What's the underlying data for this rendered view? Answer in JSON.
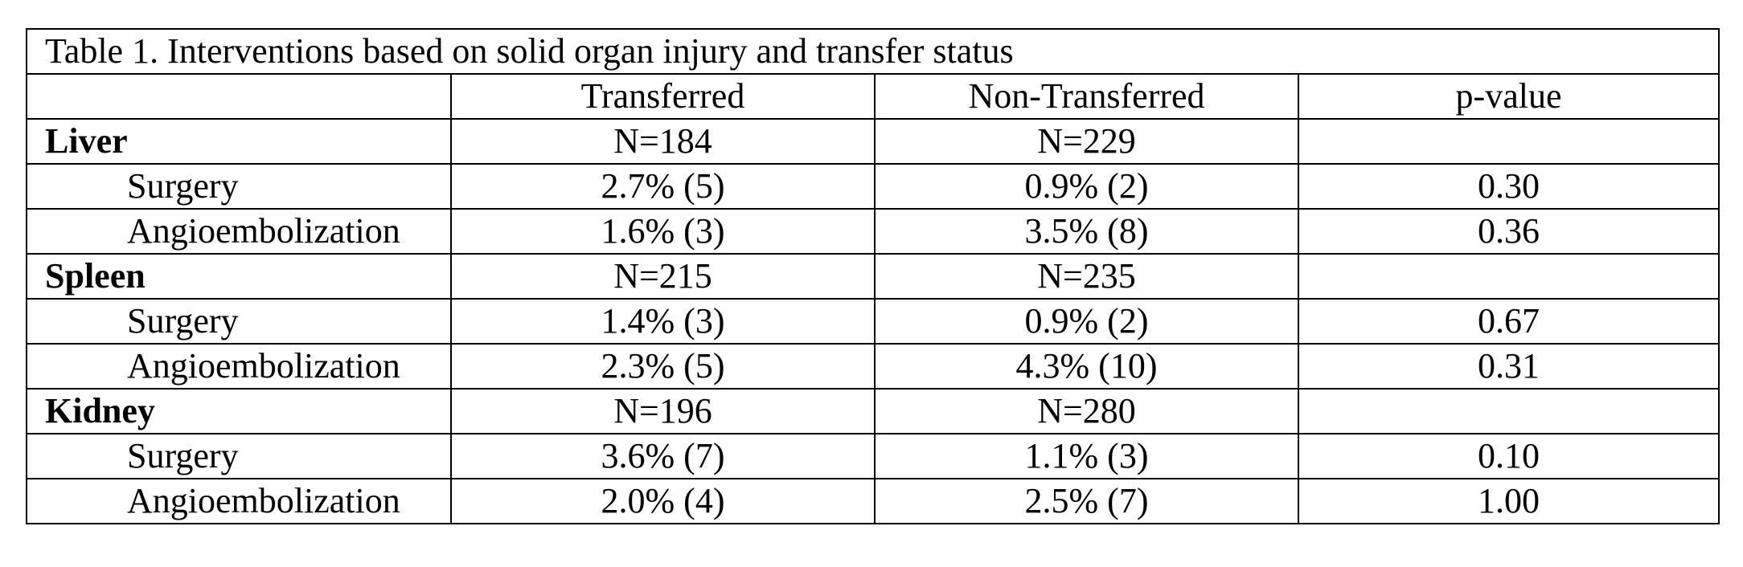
{
  "table": {
    "caption": "Table 1. Interventions based on solid organ injury and transfer status",
    "header": {
      "blank": "",
      "transferred": "Transferred",
      "non_transferred": "Non-Transferred",
      "p_value": "p-value"
    },
    "groups": [
      {
        "organ": "Liver",
        "n_transferred": "N=184",
        "n_non_transferred": "N=229",
        "rows": [
          {
            "label": "Surgery",
            "transferred": "2.7% (5)",
            "non_transferred": "0.9% (2)",
            "p_value": "0.30"
          },
          {
            "label": "Angioembolization",
            "transferred": "1.6% (3)",
            "non_transferred": "3.5% (8)",
            "p_value": "0.36"
          }
        ]
      },
      {
        "organ": "Spleen",
        "n_transferred": "N=215",
        "n_non_transferred": "N=235",
        "rows": [
          {
            "label": "Surgery",
            "transferred": "1.4% (3)",
            "non_transferred": "0.9% (2)",
            "p_value": "0.67"
          },
          {
            "label": "Angioembolization",
            "transferred": "2.3% (5)",
            "non_transferred": "4.3% (10)",
            "p_value": "0.31"
          }
        ]
      },
      {
        "organ": "Kidney",
        "n_transferred": "N=196",
        "n_non_transferred": "N=280",
        "rows": [
          {
            "label": "Surgery",
            "transferred": "3.6% (7)",
            "non_transferred": "1.1% (3)",
            "p_value": "0.10"
          },
          {
            "label": "Angioembolization",
            "transferred": "2.0% (4)",
            "non_transferred": "2.5% (7)",
            "p_value": "1.00"
          }
        ]
      }
    ]
  }
}
